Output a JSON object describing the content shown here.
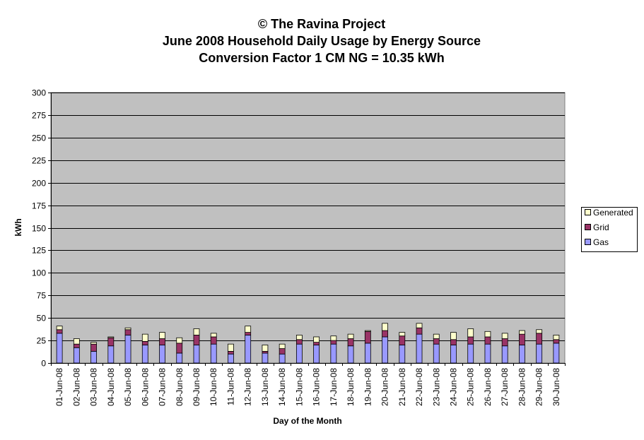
{
  "chart_data": {
    "type": "bar",
    "stacked": true,
    "title": [
      "© The Ravina Project",
      "June 2008 Household Daily Usage by Energy Source",
      "Conversion Factor 1 CM NG = 10.35 kWh"
    ],
    "xlabel": "Day of the Month",
    "ylabel": "kWh",
    "ylim": [
      0,
      300
    ],
    "yticks": [
      0,
      25,
      50,
      75,
      100,
      125,
      150,
      175,
      200,
      225,
      250,
      275,
      300
    ],
    "grid": true,
    "legend_position": "right",
    "categories": [
      "01-Jun-08",
      "02-Jun-08",
      "03-Jun-08",
      "04-Jun-08",
      "05-Jun-08",
      "06-Jun-08",
      "07-Jun-08",
      "08-Jun-08",
      "09-Jun-08",
      "10-Jun-08",
      "11-Jun-08",
      "12-Jun-08",
      "13-Jun-08",
      "14-Jun-08",
      "15-Jun-08",
      "16-Jun-08",
      "17-Jun-08",
      "18-Jun-08",
      "19-Jun-08",
      "20-Jun-08",
      "21-Jun-08",
      "22-Jun-08",
      "23-Jun-08",
      "24-Jun-08",
      "25-Jun-08",
      "26-Jun-08",
      "27-Jun-08",
      "28-Jun-08",
      "29-Jun-08",
      "30-Jun-08"
    ],
    "series": [
      {
        "name": "Gas",
        "color": "#9999ff",
        "values": [
          33,
          17,
          13,
          19,
          31,
          20,
          20,
          11,
          20,
          21,
          10,
          31,
          11,
          10,
          21,
          20,
          21,
          19,
          22,
          29,
          20,
          32,
          21,
          20,
          21,
          21,
          19,
          20,
          21,
          22
        ]
      },
      {
        "name": "Grid",
        "color": "#993366",
        "values": [
          4,
          4,
          8,
          9,
          6,
          4,
          7,
          11,
          11,
          8,
          3,
          3,
          2,
          6,
          5,
          3,
          4,
          8,
          13,
          7,
          10,
          7,
          6,
          6,
          8,
          8,
          8,
          12,
          12,
          4
        ]
      },
      {
        "name": "Generated",
        "color": "#ffffcc",
        "values": [
          4,
          6,
          2,
          1,
          2,
          8,
          7,
          6,
          7,
          4,
          8,
          7,
          7,
          5,
          5,
          6,
          5,
          5,
          1,
          8,
          4,
          5,
          5,
          8,
          9,
          6,
          6,
          4,
          4,
          5
        ]
      }
    ],
    "legend_order": [
      "Generated",
      "Grid",
      "Gas"
    ],
    "colors": {
      "plot_background": "#c0c0c0",
      "gridline": "#000000",
      "bar_outline": "#000000"
    }
  }
}
